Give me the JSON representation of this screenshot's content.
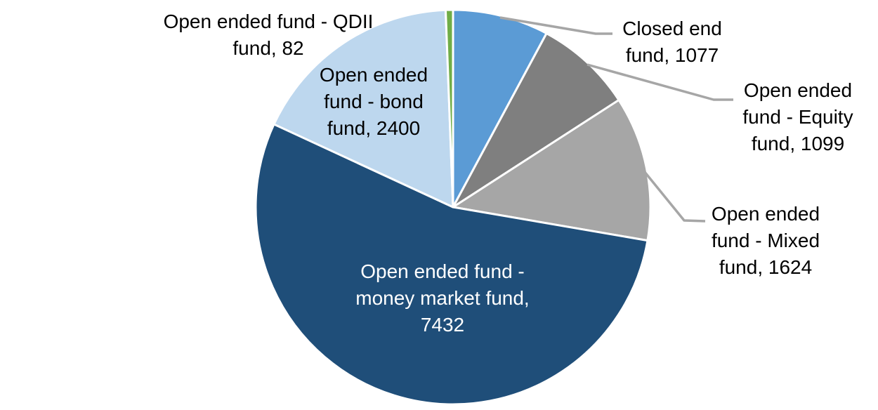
{
  "chart_data": {
    "type": "pie",
    "title": "",
    "direction": "clockwise",
    "start_angle_deg": 0,
    "slice_border_color": "#FFFFFF",
    "leader_line_color": "#A6A6A6",
    "series": [
      {
        "key": "closed-end-fund",
        "label": "Closed end fund",
        "value": 1077,
        "color": "#5B9BD5"
      },
      {
        "key": "equity-fund",
        "label": "Open ended fund - Equity fund",
        "value": 1099,
        "color": "#7F7F7F"
      },
      {
        "key": "mixed-fund",
        "label": "Open ended fund - Mixed fund",
        "value": 1624,
        "color": "#A6A6A6"
      },
      {
        "key": "money-market-fund",
        "label": "Open ended fund - money market fund",
        "value": 7432,
        "color": "#1F4E79"
      },
      {
        "key": "bond-fund",
        "label": "Open ended fund - bond fund",
        "value": 2400,
        "color": "#BDD7EE"
      },
      {
        "key": "qdii-fund",
        "label": "Open ended fund - QDII fund",
        "value": 82,
        "color": "#70AD47"
      }
    ],
    "legend_position": "none",
    "grid": false
  },
  "labels": {
    "qdii": {
      "lines": [
        "Open ended fund - QDII",
        "fund, 82"
      ]
    },
    "bond": {
      "lines": [
        "Open ended",
        "fund - bond",
        "fund, 2400"
      ]
    },
    "closed_end": {
      "lines": [
        "Closed end",
        "fund, 1077"
      ]
    },
    "equity": {
      "lines": [
        "Open ended",
        "fund - Equity",
        "fund, 1099"
      ]
    },
    "mixed": {
      "lines": [
        "Open ended",
        "fund - Mixed",
        "fund, 1624"
      ]
    },
    "money_market": {
      "lines": [
        "Open ended fund -",
        "money market fund,",
        "7432"
      ]
    }
  }
}
